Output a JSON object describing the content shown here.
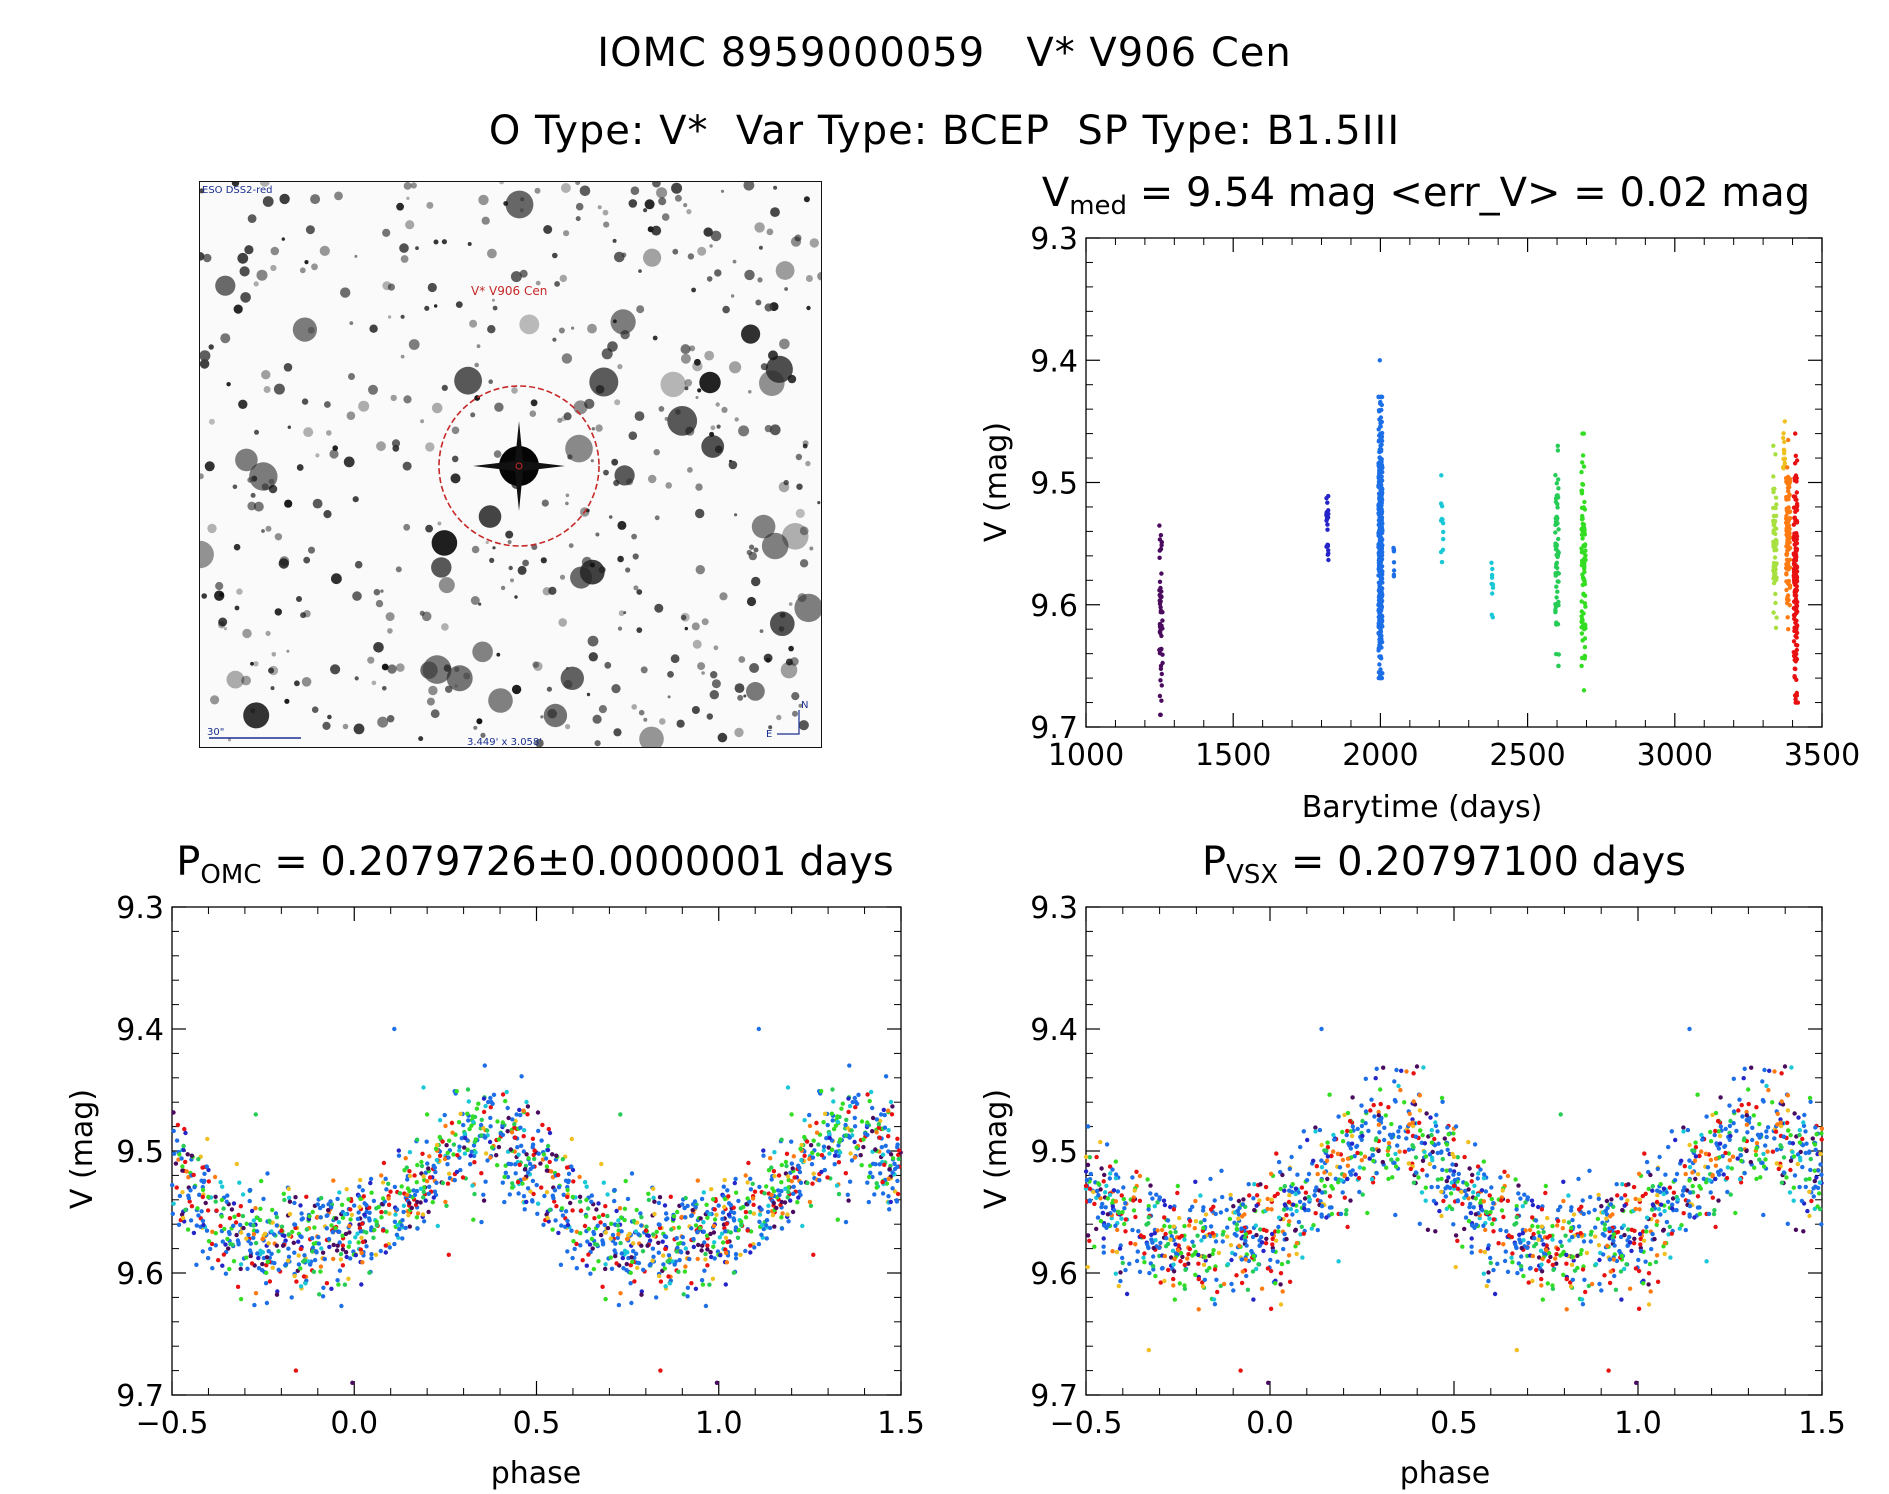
{
  "header": {
    "line1": "IOMC 8959000059   V* V906 Cen",
    "line2": "O Type: V*  Var Type: BCEP  SP Type: B1.5III"
  },
  "finder_chart": {
    "survey_label": "ESO DSS2-red",
    "target_label": "V* V906 Cen",
    "scale_label": "30\"",
    "fov_label": "3.449' x 3.058'",
    "north_label": "N",
    "east_label": "E"
  },
  "colors": {
    "axis": "#000000",
    "ring": "#c62828",
    "dss_blue": "#1a2f8f",
    "seasons": [
      "#4a0a5e",
      "#2424c8",
      "#1c6fe6",
      "#19c8d6",
      "#26cc55",
      "#33dd22",
      "#a8e040",
      "#f0c020",
      "#ff7a10",
      "#e81010"
    ]
  },
  "chart_data": [
    {
      "id": "lightcurve",
      "type": "scatter",
      "title_main": "V",
      "title_sub": "med",
      "title_rest": " = 9.54 mag <err_V> = 0.02 mag",
      "xlabel": "Barytime (days)",
      "ylabel": "V (mag)",
      "xlim": [
        1000,
        3500
      ],
      "ylim": [
        9.7,
        9.3
      ],
      "xticks": [
        "1000",
        "1500",
        "2000",
        "2500",
        "3000",
        "3500"
      ],
      "yticks": [
        "9.3",
        "9.4",
        "9.5",
        "9.6",
        "9.7"
      ],
      "clusters": [
        {
          "x": 1255,
          "spread": 12,
          "vmin": 9.52,
          "vmax": 9.69,
          "n": 55,
          "color": 0
        },
        {
          "x": 1820,
          "spread": 7,
          "vmin": 9.49,
          "vmax": 9.58,
          "n": 22,
          "color": 1
        },
        {
          "x": 2000,
          "spread": 13,
          "vmin": 9.43,
          "vmax": 9.66,
          "n": 420,
          "color": 2
        },
        {
          "x": 2045,
          "spread": 4,
          "vmin": 9.54,
          "vmax": 9.58,
          "n": 8,
          "color": 2
        },
        {
          "x": 2210,
          "spread": 8,
          "vmin": 9.47,
          "vmax": 9.58,
          "n": 12,
          "color": 3
        },
        {
          "x": 2380,
          "spread": 6,
          "vmin": 9.55,
          "vmax": 9.62,
          "n": 10,
          "color": 3
        },
        {
          "x": 2600,
          "spread": 12,
          "vmin": 9.47,
          "vmax": 9.65,
          "n": 65,
          "color": 4
        },
        {
          "x": 2690,
          "spread": 14,
          "vmin": 9.46,
          "vmax": 9.67,
          "n": 90,
          "color": 5
        },
        {
          "x": 3340,
          "spread": 12,
          "vmin": 9.47,
          "vmax": 9.62,
          "n": 60,
          "color": 6
        },
        {
          "x": 3370,
          "spread": 8,
          "vmin": 9.45,
          "vmax": 9.5,
          "n": 15,
          "color": 7
        },
        {
          "x": 3385,
          "spread": 14,
          "vmin": 9.46,
          "vmax": 9.62,
          "n": 90,
          "color": 8
        },
        {
          "x": 3410,
          "spread": 12,
          "vmin": 9.46,
          "vmax": 9.68,
          "n": 160,
          "color": 9
        }
      ],
      "outliers": [
        {
          "x": 1998,
          "v": 9.4,
          "color": 2
        },
        {
          "x": 1252,
          "v": 9.69,
          "color": 0
        },
        {
          "x": 3418,
          "v": 9.68,
          "color": 9
        },
        {
          "x": 2005,
          "v": 9.66,
          "color": 2
        }
      ]
    },
    {
      "id": "phase_omc",
      "type": "scatter",
      "title_main": "P",
      "title_sub": "OMC",
      "title_rest": " = 0.2079726±0.0000001 days",
      "period_days": 0.2079726,
      "xlabel": "phase",
      "ylabel": "V (mag)",
      "xlim": [
        -0.5,
        1.5
      ],
      "ylim": [
        9.7,
        9.3
      ],
      "xticks": [
        "−0.5",
        "0.0",
        "0.5",
        "1.0",
        "1.5"
      ],
      "yticks": [
        "9.3",
        "9.4",
        "9.5",
        "9.6",
        "9.7"
      ],
      "phase_shift": 0.0,
      "mean_mag": 9.54,
      "amplitude": 0.045,
      "scatter": 0.022,
      "n": 900,
      "outliers": [
        {
          "phase": 0.11,
          "v": 9.4,
          "color": 2
        },
        {
          "phase": -0.005,
          "v": 9.69,
          "color": 0
        },
        {
          "phase": -0.16,
          "v": 9.68,
          "color": 9
        },
        {
          "phase": -0.27,
          "v": 9.47,
          "color": 4
        },
        {
          "phase": 0.2,
          "v": 9.47,
          "color": 5
        }
      ]
    },
    {
      "id": "phase_vsx",
      "type": "scatter",
      "title_main": "P",
      "title_sub": "VSX",
      "title_rest": " = 0.20797100 days",
      "period_days": 0.207971,
      "xlabel": "phase",
      "ylabel": "V (mag)",
      "xlim": [
        -0.5,
        1.5
      ],
      "ylim": [
        9.7,
        9.3
      ],
      "xticks": [
        "−0.5",
        "0.0",
        "0.5",
        "1.0",
        "1.5"
      ],
      "yticks": [
        "9.3",
        "9.4",
        "9.5",
        "9.6",
        "9.7"
      ],
      "phase_shift": 0.03,
      "mean_mag": 9.54,
      "amplitude": 0.045,
      "scatter": 0.024,
      "n": 900,
      "outliers": [
        {
          "phase": 0.14,
          "v": 9.4,
          "color": 2
        },
        {
          "phase": -0.005,
          "v": 9.69,
          "color": 0
        },
        {
          "phase": -0.08,
          "v": 9.68,
          "color": 9
        },
        {
          "phase": 0.79,
          "v": 9.47,
          "color": 4
        }
      ]
    }
  ]
}
